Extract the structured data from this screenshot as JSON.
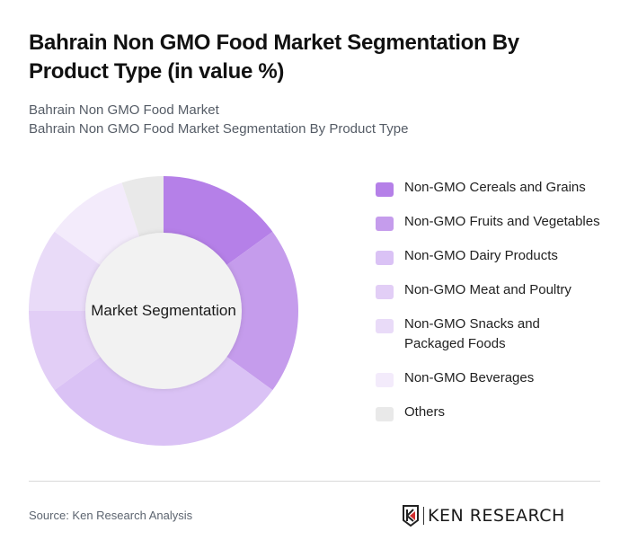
{
  "header": {
    "title": "Bahrain Non GMO Food Market Segmentation By Product Type (in value %)",
    "subtitle_line1": "Bahrain Non GMO Food Market",
    "subtitle_line2": "Bahrain Non GMO Food Market Segmentation By Product Type"
  },
  "chart": {
    "center_label": "Market Segmentation"
  },
  "chart_data": {
    "type": "pie",
    "variant": "donut",
    "title": "Bahrain Non GMO Food Market Segmentation By Product Type (in value %)",
    "center_label": "Market Segmentation",
    "categories": [
      "Non-GMO Cereals and Grains",
      "Non-GMO Fruits and Vegetables",
      "Non-GMO Dairy Products",
      "Non-GMO Meat and Poultry",
      "Non-GMO Snacks and Packaged Foods",
      "Non-GMO Beverages",
      "Others"
    ],
    "values": [
      15,
      20,
      30,
      10,
      10,
      10,
      5
    ],
    "colors": [
      "#b580e8",
      "#c59cec",
      "#dac2f5",
      "#e2cef6",
      "#e9dbf8",
      "#f3ebfb",
      "#e9e9e9"
    ],
    "start_angle_deg": 0,
    "direction": "clockwise",
    "legend_position": "right"
  },
  "legend": {
    "items": [
      {
        "label": "Non-GMO Cereals and Grains",
        "color": "#b580e8"
      },
      {
        "label": "Non-GMO Fruits and Vegetables",
        "color": "#c59cec"
      },
      {
        "label": "Non-GMO Dairy Products",
        "color": "#dac2f5"
      },
      {
        "label": "Non-GMO Meat and Poultry",
        "color": "#e2cef6"
      },
      {
        "label": "Non-GMO Snacks and Packaged Foods",
        "color": "#e9dbf8"
      },
      {
        "label": "Non-GMO Beverages",
        "color": "#f3ebfb"
      },
      {
        "label": "Others",
        "color": "#e9e9e9"
      }
    ]
  },
  "footer": {
    "source": "Source: Ken Research Analysis",
    "brand": "KEN RESEARCH"
  }
}
